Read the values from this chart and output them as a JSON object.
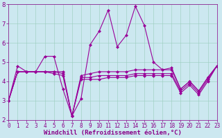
{
  "x": [
    0,
    1,
    2,
    3,
    4,
    5,
    6,
    7,
    8,
    9,
    10,
    11,
    12,
    13,
    14,
    15,
    16,
    17,
    18,
    19,
    20,
    21,
    22,
    23
  ],
  "series": [
    [
      3.0,
      4.8,
      4.5,
      4.5,
      5.3,
      5.3,
      3.6,
      2.2,
      3.1,
      5.9,
      6.6,
      7.7,
      5.8,
      6.4,
      7.9,
      6.9,
      5.0,
      4.6,
      4.7,
      3.6,
      4.0,
      3.5,
      4.2,
      4.8
    ],
    [
      3.0,
      4.5,
      4.5,
      4.5,
      4.5,
      4.5,
      4.5,
      2.2,
      4.3,
      4.4,
      4.5,
      4.5,
      4.5,
      4.5,
      4.6,
      4.6,
      4.6,
      4.6,
      4.6,
      3.6,
      4.0,
      3.5,
      4.2,
      4.8
    ],
    [
      3.0,
      4.5,
      4.5,
      4.5,
      4.5,
      4.5,
      4.4,
      2.2,
      4.2,
      4.2,
      4.3,
      4.3,
      4.3,
      4.3,
      4.4,
      4.4,
      4.4,
      4.4,
      4.4,
      3.5,
      3.9,
      3.4,
      4.1,
      4.8
    ],
    [
      3.0,
      4.5,
      4.5,
      4.5,
      4.5,
      4.4,
      4.3,
      2.2,
      4.1,
      4.1,
      4.1,
      4.2,
      4.2,
      4.2,
      4.3,
      4.3,
      4.3,
      4.3,
      4.3,
      3.4,
      3.8,
      3.3,
      4.0,
      4.8
    ]
  ],
  "line_color": "#990099",
  "marker": "D",
  "markersize": 2.0,
  "linewidth": 0.8,
  "bg_color": "#cce8f0",
  "grid_color": "#99ccbb",
  "xlabel": "Windchill (Refroidissement éolien,°C)",
  "xlabel_color": "#880088",
  "xlabel_fontsize": 6.5,
  "tick_color": "#880088",
  "tick_fontsize": 5.5,
  "ylim": [
    2,
    8
  ],
  "xlim": [
    0,
    23
  ],
  "yticks": [
    2,
    3,
    4,
    5,
    6,
    7,
    8
  ],
  "xticks": [
    0,
    1,
    2,
    3,
    4,
    5,
    6,
    7,
    8,
    9,
    10,
    11,
    12,
    13,
    14,
    15,
    16,
    17,
    18,
    19,
    20,
    21,
    22,
    23
  ]
}
